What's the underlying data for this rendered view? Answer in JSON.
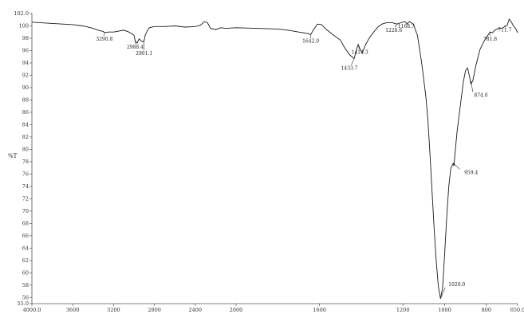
{
  "chart_data": {
    "type": "line",
    "title": "",
    "xlabel": "",
    "ylabel": "%T",
    "xlim": [
      4000.0,
      650.0
    ],
    "ylim": [
      55.0,
      102.0
    ],
    "x_reversed": true,
    "grid": false,
    "x_ticks": [
      4000,
      3600,
      3200,
      2800,
      2400,
      2000,
      1600,
      1200,
      1000,
      800,
      650
    ],
    "x_tick_labels": [
      "4000.0",
      "3600",
      "3200",
      "2800",
      "2400",
      "2000",
      "1600",
      "1200",
      "1000",
      "800",
      "650.0"
    ],
    "y_ticks": [
      102,
      100,
      98,
      96,
      94,
      92,
      90,
      88,
      86,
      84,
      82,
      80,
      78,
      76,
      74,
      72,
      70,
      68,
      66,
      64,
      62,
      60,
      58,
      56,
      55
    ],
    "y_tick_labels": [
      "102.0",
      "100",
      "98",
      "96",
      "94",
      "92",
      "90",
      "88",
      "86",
      "84",
      "82",
      "80",
      "78",
      "76",
      "74",
      "72",
      "70",
      "68",
      "66",
      "64",
      "62",
      "60",
      "58",
      "56",
      "55.0"
    ],
    "series": [
      {
        "x": [
          4000,
          3800,
          3600,
          3500,
          3400,
          3350,
          3300,
          3290.8,
          3250,
          3200,
          3100,
          3050,
          3000,
          2988.4,
          2970,
          2950,
          2930,
          2915,
          2901.1,
          2890,
          2870,
          2850,
          2800,
          2700,
          2600,
          2500,
          2400,
          2350,
          2330,
          2310,
          2280,
          2250,
          2200,
          2150,
          2100,
          2000,
          1900,
          1800,
          1750,
          1700,
          1660,
          1642.0,
          1630,
          1610,
          1590,
          1570,
          1540,
          1500,
          1480,
          1455,
          1433.7,
          1425,
          1414.3,
          1405,
          1395,
          1380,
          1360,
          1340,
          1320,
          1300,
          1280,
          1250,
          1228.6,
          1210,
          1190,
          1180,
          1168.7,
          1150,
          1130,
          1110,
          1090,
          1080,
          1070,
          1060,
          1050,
          1040,
          1030,
          1020.0,
          1010,
          1000,
          990,
          980,
          970,
          960,
          959.4,
          955,
          950,
          940,
          925,
          910,
          900,
          890,
          880,
          874.0,
          865,
          850,
          830,
          810,
          790,
          781.8,
          770,
          760,
          740,
          725,
          711.7,
          700,
          690,
          680,
          670,
          660,
          650
        ],
        "y": [
          100.6,
          100.4,
          100.2,
          100.0,
          99.6,
          99.3,
          99.1,
          98.9,
          99.0,
          99.0,
          99.3,
          99.0,
          98.5,
          97.6,
          97.2,
          97.9,
          97.6,
          97.4,
          97.6,
          98.5,
          99.2,
          99.7,
          99.9,
          99.9,
          100.0,
          99.8,
          99.9,
          100.1,
          100.4,
          100.7,
          100.5,
          99.6,
          99.4,
          99.7,
          99.6,
          99.7,
          99.6,
          99.5,
          99.3,
          99.0,
          98.8,
          98.6,
          99.3,
          100.3,
          100.2,
          99.5,
          98.7,
          97.7,
          96.5,
          95.3,
          94.7,
          95.9,
          97.0,
          96.2,
          95.6,
          96.9,
          98.1,
          99.0,
          99.8,
          100.3,
          100.5,
          100.5,
          100.3,
          100.5,
          100.7,
          100.3,
          100.7,
          100.3,
          98.4,
          94.0,
          88.6,
          84.6,
          79.0,
          73.0,
          67.0,
          61.8,
          57.8,
          55.8,
          57.5,
          63.0,
          69.0,
          74.0,
          77.0,
          77.6,
          77.8,
          77.3,
          79.5,
          83.0,
          87.0,
          91.0,
          92.7,
          93.2,
          91.7,
          90.6,
          91.1,
          93.6,
          96.2,
          97.6,
          98.6,
          99.0,
          98.9,
          99.3,
          99.6,
          99.6,
          99.9,
          100.1,
          101.1,
          100.6,
          100.0,
          99.6,
          98.9
        ]
      }
    ],
    "annotations": [
      {
        "x": 3290.8,
        "y": 98.9,
        "text": "3290.8"
      },
      {
        "x": 2988.4,
        "y": 97.6,
        "text": "2988.4"
      },
      {
        "x": 2901.1,
        "y": 97.6,
        "text": "2901.1"
      },
      {
        "x": 1642.0,
        "y": 98.6,
        "text": "1642.0"
      },
      {
        "x": 1433.7,
        "y": 94.7,
        "text": "1433.7"
      },
      {
        "x": 1414.3,
        "y": 97.0,
        "text": "1414.3"
      },
      {
        "x": 1228.6,
        "y": 100.3,
        "text": "1228.6"
      },
      {
        "x": 1168.7,
        "y": 100.7,
        "text": "1168.7"
      },
      {
        "x": 1020.0,
        "y": 55.8,
        "text": "1020.0"
      },
      {
        "x": 959.4,
        "y": 77.8,
        "text": "959.4"
      },
      {
        "x": 874.0,
        "y": 91.1,
        "text": "874.0"
      },
      {
        "x": 781.8,
        "y": 98.9,
        "text": "781.8"
      },
      {
        "x": 711.7,
        "y": 100.1,
        "text": "711.7"
      }
    ]
  }
}
